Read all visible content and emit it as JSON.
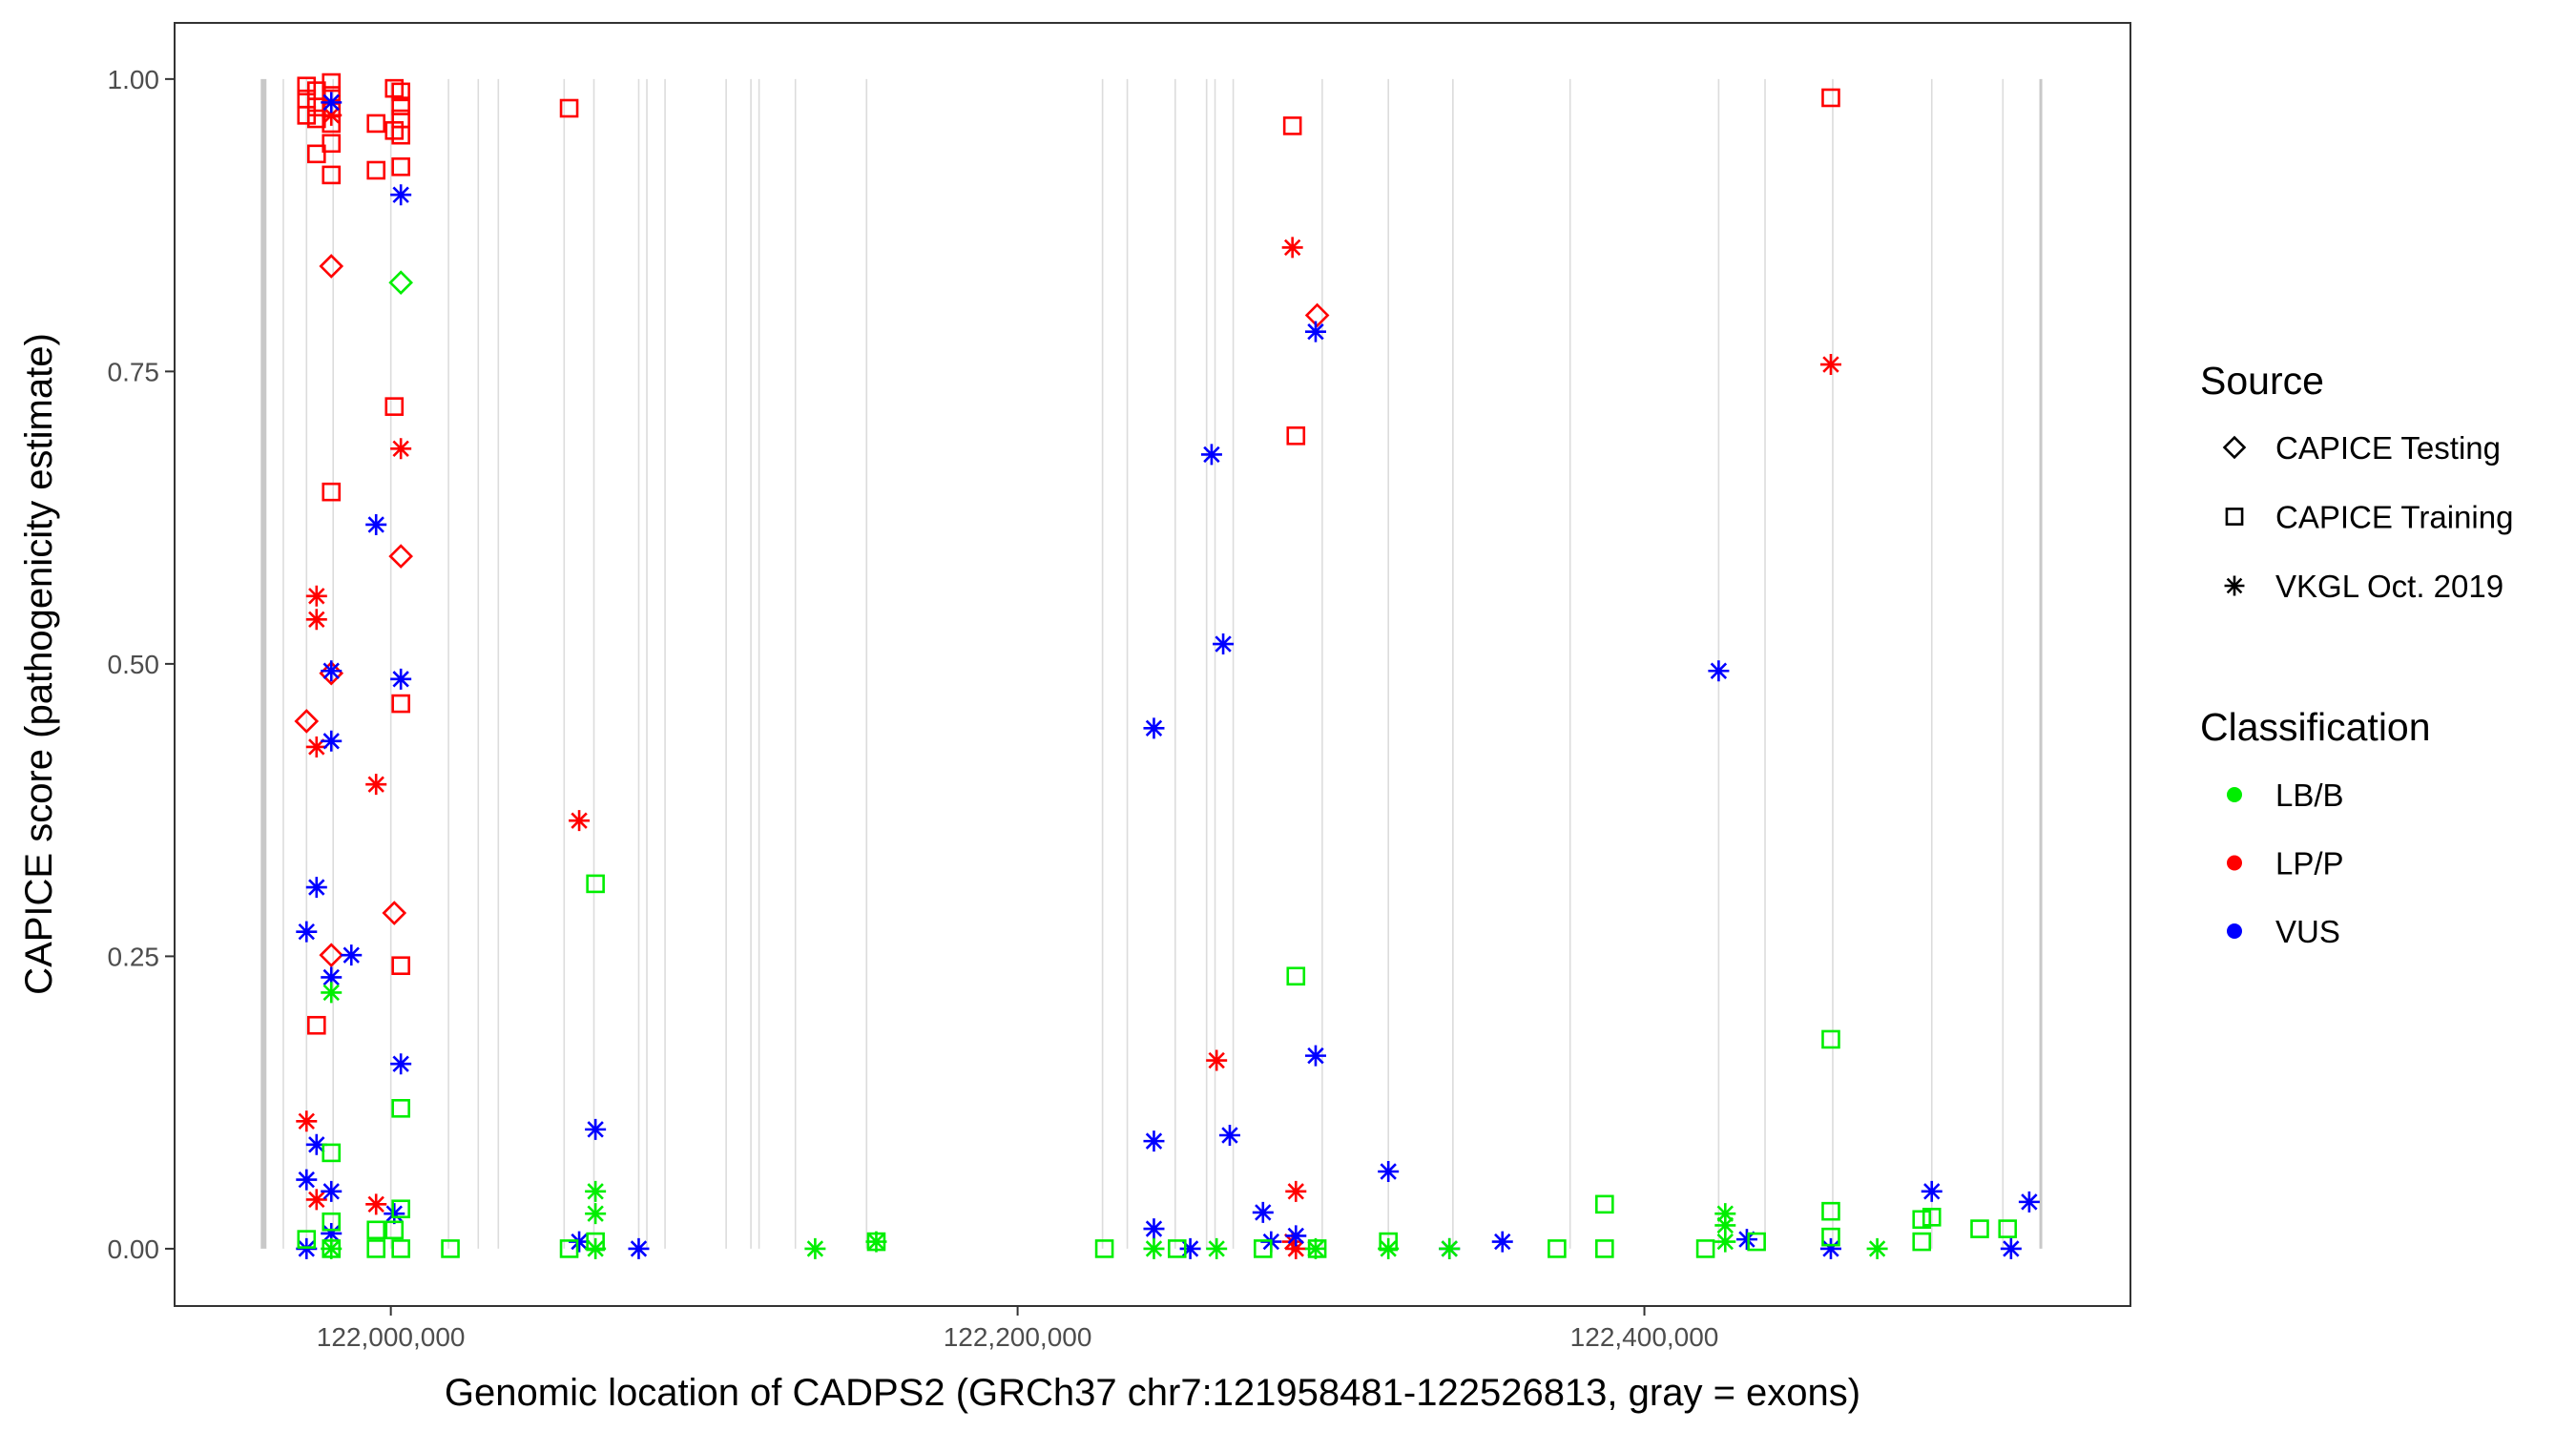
{
  "chart_data": {
    "type": "scatter",
    "xlabel": "Genomic location of CADPS2 (GRCh37 chr7:121958481-122526813, gray = exons)",
    "ylabel": "CAPICE score (pathogenicity estimate)",
    "xlim": [
      121931000,
      122555100
    ],
    "ylim": [
      -0.049,
      1.048
    ],
    "x_ticks": [
      122000000,
      122200000,
      122400000
    ],
    "x_tick_labels": [
      "122,000,000",
      "122,200,000",
      "122,400,000"
    ],
    "y_ticks": [
      0,
      0.25,
      0.5,
      0.75,
      1.0
    ],
    "y_tick_labels": [
      "0.00",
      "0.25",
      "0.50",
      "0.75",
      "1.00"
    ],
    "grid": false,
    "exons": [
      121959400,
      121965700,
      121973100,
      121981600,
      122000000,
      122018400,
      122027900,
      122034300,
      122055300,
      122064800,
      122079100,
      122081700,
      122087500,
      122107000,
      122114900,
      122117500,
      122129100,
      122151800,
      122227100,
      122235000,
      122250300,
      122260300,
      122263000,
      122268800,
      122297200,
      122318300,
      122338900,
      122376300,
      122423700,
      122438500,
      122460100,
      122491700,
      122514400,
      122526500
    ],
    "legend": {
      "placement": "right",
      "source_title": "Source",
      "sources": [
        {
          "key": "T",
          "label": "CAPICE Testing",
          "shape": "diamond"
        },
        {
          "key": "R",
          "label": "CAPICE Training",
          "shape": "square"
        },
        {
          "key": "V",
          "label": "VKGL Oct. 2019",
          "shape": "asterisk"
        }
      ],
      "class_title": "Classification",
      "classes": [
        {
          "key": "G",
          "label": "LB/B",
          "color": "#00ee00"
        },
        {
          "key": "R",
          "label": "LP/P",
          "color": "#ff0000"
        },
        {
          "key": "B",
          "label": "VUS",
          "color": "#0000ff"
        }
      ]
    },
    "points": [
      [
        121973100,
        0.994,
        "R",
        "R"
      ],
      [
        121973100,
        0.983,
        "R",
        "R"
      ],
      [
        121973100,
        0.969,
        "R",
        "R"
      ],
      [
        121976300,
        0.99,
        "R",
        "R"
      ],
      [
        121976300,
        0.976,
        "R",
        "R"
      ],
      [
        121976300,
        0.966,
        "R",
        "R"
      ],
      [
        121976300,
        0.936,
        "R",
        "R"
      ],
      [
        121981000,
        0.997,
        "R",
        "R"
      ],
      [
        121981000,
        0.986,
        "R",
        "R"
      ],
      [
        121981000,
        0.975,
        "R",
        "R"
      ],
      [
        121981000,
        0.962,
        "R",
        "R"
      ],
      [
        121981000,
        0.945,
        "R",
        "R"
      ],
      [
        121981000,
        0.918,
        "R",
        "R"
      ],
      [
        121995300,
        0.962,
        "R",
        "R"
      ],
      [
        121995300,
        0.922,
        "R",
        "R"
      ],
      [
        122001100,
        0.992,
        "R",
        "R"
      ],
      [
        122003200,
        0.989,
        "R",
        "R"
      ],
      [
        122003200,
        0.977,
        "R",
        "R"
      ],
      [
        122003200,
        0.966,
        "R",
        "R"
      ],
      [
        122001100,
        0.956,
        "R",
        "R"
      ],
      [
        122003200,
        0.952,
        "R",
        "R"
      ],
      [
        122003200,
        0.925,
        "R",
        "R"
      ],
      [
        122001100,
        0.72,
        "R",
        "R"
      ],
      [
        122003200,
        0.466,
        "R",
        "R"
      ],
      [
        122003200,
        0.242,
        "R",
        "R"
      ],
      [
        122056900,
        0.975,
        "R",
        "R"
      ],
      [
        121981000,
        0.647,
        "R",
        "R"
      ],
      [
        121976300,
        0.191,
        "R",
        "R"
      ],
      [
        122287700,
        0.96,
        "R",
        "R"
      ],
      [
        122288800,
        0.695,
        "R",
        "R"
      ],
      [
        122459500,
        0.984,
        "R",
        "R"
      ],
      [
        121981000,
        0.84,
        "T",
        "R"
      ],
      [
        122003200,
        0.592,
        "T",
        "R"
      ],
      [
        121973100,
        0.451,
        "T",
        "R"
      ],
      [
        121981000,
        0.492,
        "T",
        "R"
      ],
      [
        122001100,
        0.287,
        "T",
        "R"
      ],
      [
        121981000,
        0.251,
        "T",
        "R"
      ],
      [
        122295600,
        0.798,
        "T",
        "R"
      ],
      [
        122003200,
        0.826,
        "T",
        "G"
      ],
      [
        121981000,
        0.969,
        "V",
        "R"
      ],
      [
        122003200,
        0.684,
        "V",
        "R"
      ],
      [
        121976300,
        0.558,
        "V",
        "R"
      ],
      [
        121976300,
        0.538,
        "V",
        "R"
      ],
      [
        121976300,
        0.429,
        "V",
        "R"
      ],
      [
        121995300,
        0.397,
        "V",
        "R"
      ],
      [
        121973100,
        0.109,
        "V",
        "R"
      ],
      [
        121976300,
        0.042,
        "V",
        "R"
      ],
      [
        121995300,
        0.038,
        "V",
        "R"
      ],
      [
        122060100,
        0.366,
        "V",
        "R"
      ],
      [
        122287700,
        0.856,
        "V",
        "R"
      ],
      [
        122459500,
        0.756,
        "V",
        "R"
      ],
      [
        122263500,
        0.161,
        "V",
        "R"
      ],
      [
        122288800,
        0.049,
        "V",
        "R"
      ],
      [
        122288800,
        0.0,
        "V",
        "R"
      ],
      [
        122287700,
        0.006,
        "V",
        "R"
      ],
      [
        121981000,
        0.98,
        "V",
        "B"
      ],
      [
        122003200,
        0.901,
        "V",
        "B"
      ],
      [
        121995300,
        0.619,
        "V",
        "B"
      ],
      [
        121981000,
        0.494,
        "V",
        "B"
      ],
      [
        122003200,
        0.487,
        "V",
        "B"
      ],
      [
        121981000,
        0.434,
        "V",
        "B"
      ],
      [
        121976300,
        0.309,
        "V",
        "B"
      ],
      [
        121973100,
        0.271,
        "V",
        "B"
      ],
      [
        121987400,
        0.251,
        "V",
        "B"
      ],
      [
        121981000,
        0.232,
        "V",
        "B"
      ],
      [
        122003200,
        0.158,
        "V",
        "B"
      ],
      [
        121976300,
        0.089,
        "V",
        "B"
      ],
      [
        121973100,
        0.059,
        "V",
        "B"
      ],
      [
        121981000,
        0.049,
        "V",
        "B"
      ],
      [
        121981000,
        0.013,
        "V",
        "B"
      ],
      [
        121973100,
        0.0,
        "V",
        "B"
      ],
      [
        122001100,
        0.03,
        "V",
        "B"
      ],
      [
        122065300,
        0.102,
        "V",
        "B"
      ],
      [
        122060100,
        0.006,
        "V",
        "B"
      ],
      [
        122079100,
        0.0,
        "V",
        "B"
      ],
      [
        122261900,
        0.679,
        "V",
        "B"
      ],
      [
        122265600,
        0.517,
        "V",
        "B"
      ],
      [
        122243500,
        0.445,
        "V",
        "B"
      ],
      [
        122295100,
        0.784,
        "V",
        "B"
      ],
      [
        122295100,
        0.165,
        "V",
        "B"
      ],
      [
        122243500,
        0.092,
        "V",
        "B"
      ],
      [
        122267700,
        0.097,
        "V",
        "B"
      ],
      [
        122243500,
        0.017,
        "V",
        "B"
      ],
      [
        122278300,
        0.031,
        "V",
        "B"
      ],
      [
        122255100,
        0.0,
        "V",
        "B"
      ],
      [
        122280900,
        0.006,
        "V",
        "B"
      ],
      [
        122288800,
        0.011,
        "V",
        "B"
      ],
      [
        122318300,
        0.066,
        "V",
        "B"
      ],
      [
        122337800,
        0.0,
        "V",
        "B"
      ],
      [
        122354700,
        0.006,
        "V",
        "B"
      ],
      [
        122423700,
        0.494,
        "V",
        "B"
      ],
      [
        122432700,
        0.008,
        "V",
        "B"
      ],
      [
        122459500,
        0.0,
        "V",
        "B"
      ],
      [
        122491700,
        0.049,
        "V",
        "B"
      ],
      [
        122517000,
        0.0,
        "V",
        "B"
      ],
      [
        122522800,
        0.04,
        "V",
        "B"
      ],
      [
        121981000,
        0.219,
        "V",
        "G"
      ],
      [
        122065300,
        0.049,
        "V",
        "G"
      ],
      [
        122065300,
        0.03,
        "V",
        "G"
      ],
      [
        122065300,
        0.0,
        "V",
        "G"
      ],
      [
        122135400,
        0.0,
        "V",
        "G"
      ],
      [
        122154900,
        0.006,
        "V",
        "G"
      ],
      [
        122243500,
        0.0,
        "V",
        "G"
      ],
      [
        122263500,
        0.0,
        "V",
        "G"
      ],
      [
        122295100,
        0.0,
        "V",
        "G"
      ],
      [
        122318300,
        0.0,
        "V",
        "G"
      ],
      [
        122337800,
        0.0,
        "V",
        "G"
      ],
      [
        122425800,
        0.03,
        "V",
        "G"
      ],
      [
        122425800,
        0.02,
        "V",
        "G"
      ],
      [
        122425800,
        0.006,
        "V",
        "G"
      ],
      [
        122474300,
        0.0,
        "V",
        "G"
      ],
      [
        121981000,
        0.0,
        "V",
        "G"
      ],
      [
        121981000,
        0.082,
        "R",
        "G"
      ],
      [
        121981000,
        0.023,
        "R",
        "G"
      ],
      [
        121973100,
        0.008,
        "R",
        "G"
      ],
      [
        121995300,
        0.016,
        "R",
        "G"
      ],
      [
        121995300,
        0.0,
        "R",
        "G"
      ],
      [
        122003200,
        0.12,
        "R",
        "G"
      ],
      [
        122003200,
        0.034,
        "R",
        "G"
      ],
      [
        122001100,
        0.016,
        "R",
        "G"
      ],
      [
        122003200,
        0.0,
        "R",
        "G"
      ],
      [
        121981000,
        0.0,
        "R",
        "G"
      ],
      [
        122019000,
        0.0,
        "R",
        "G"
      ],
      [
        122065300,
        0.312,
        "R",
        "G"
      ],
      [
        122056900,
        0.0,
        "R",
        "G"
      ],
      [
        122065300,
        0.006,
        "R",
        "G"
      ],
      [
        122154900,
        0.006,
        "R",
        "G"
      ],
      [
        122227700,
        0.0,
        "R",
        "G"
      ],
      [
        122250900,
        0.0,
        "R",
        "G"
      ],
      [
        122278300,
        0.0,
        "R",
        "G"
      ],
      [
        122288800,
        0.233,
        "R",
        "G"
      ],
      [
        122295600,
        0.0,
        "R",
        "G"
      ],
      [
        122318300,
        0.006,
        "R",
        "G"
      ],
      [
        122372100,
        0.0,
        "R",
        "G"
      ],
      [
        122387300,
        0.038,
        "R",
        "G"
      ],
      [
        122387300,
        0.0,
        "R",
        "G"
      ],
      [
        122419500,
        0.0,
        "R",
        "G"
      ],
      [
        122435800,
        0.006,
        "R",
        "G"
      ],
      [
        122459500,
        0.179,
        "R",
        "G"
      ],
      [
        122459500,
        0.032,
        "R",
        "G"
      ],
      [
        122459500,
        0.01,
        "R",
        "G"
      ],
      [
        122488500,
        0.025,
        "R",
        "G"
      ],
      [
        122488500,
        0.006,
        "R",
        "G"
      ],
      [
        122491700,
        0.027,
        "R",
        "G"
      ],
      [
        122507000,
        0.017,
        "R",
        "G"
      ],
      [
        122515900,
        0.017,
        "R",
        "G"
      ]
    ]
  }
}
